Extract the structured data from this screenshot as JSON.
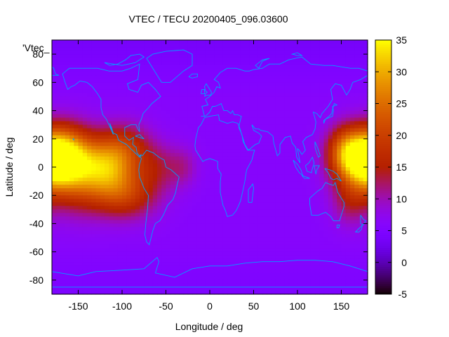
{
  "chart_data": {
    "type": "heatmap",
    "title": "VTEC / TECU 20200405_096.03600",
    "xlabel": "Longitude / deg",
    "ylabel": "Latitude / deg",
    "legend_key": "'Vtec_",
    "xlim": [
      -180,
      180
    ],
    "ylim": [
      -90,
      90
    ],
    "colorbar_range": [
      -5,
      35
    ],
    "x_ticks": [
      {
        "value": -150,
        "label": "-150"
      },
      {
        "value": -100,
        "label": "-100"
      },
      {
        "value": -50,
        "label": "-50"
      },
      {
        "value": 0,
        "label": "0"
      },
      {
        "value": 50,
        "label": "50"
      },
      {
        "value": 100,
        "label": "100"
      },
      {
        "value": 150,
        "label": "150"
      }
    ],
    "y_ticks": [
      {
        "value": 80,
        "label": "80"
      },
      {
        "value": 60,
        "label": "60"
      },
      {
        "value": 40,
        "label": "40"
      },
      {
        "value": 20,
        "label": "20"
      },
      {
        "value": 0,
        "label": "0"
      },
      {
        "value": -20,
        "label": "-20"
      },
      {
        "value": -40,
        "label": "-40"
      },
      {
        "value": -60,
        "label": "-60"
      },
      {
        "value": -80,
        "label": "-80"
      }
    ],
    "colorbar_ticks": [
      {
        "value": 35,
        "label": "35"
      },
      {
        "value": 30,
        "label": "30"
      },
      {
        "value": 25,
        "label": "25"
      },
      {
        "value": 20,
        "label": "20"
      },
      {
        "value": 15,
        "label": "15"
      },
      {
        "value": 10,
        "label": "10"
      },
      {
        "value": 5,
        "label": "5"
      },
      {
        "value": 0,
        "label": "0"
      },
      {
        "value": -5,
        "label": "-5"
      }
    ],
    "colormap": "gnuplot-rgbformulae-7-5-15",
    "background_level": 6,
    "field_components": [
      {
        "lon": -170,
        "lat": 10,
        "peak": 18,
        "sigma_lon": 22,
        "sigma_lat": 14
      },
      {
        "lon": -150,
        "lat": -5,
        "peak": 14,
        "sigma_lon": 25,
        "sigma_lat": 18
      },
      {
        "lon": -115,
        "lat": 0,
        "peak": 17,
        "sigma_lon": 22,
        "sigma_lat": 14
      },
      {
        "lon": -95,
        "lat": 15,
        "peak": 8,
        "sigma_lon": 20,
        "sigma_lat": 12
      },
      {
        "lon": -95,
        "lat": -20,
        "peak": 11,
        "sigma_lon": 25,
        "sigma_lat": 12
      },
      {
        "lon": -60,
        "lat": 0,
        "peak": 6,
        "sigma_lon": 18,
        "sigma_lat": 12
      },
      {
        "lon": -30,
        "lat": 0,
        "peak": 4,
        "sigma_lon": 12,
        "sigma_lat": 10
      },
      {
        "lon": 175,
        "lat": 3,
        "peak": 20,
        "sigma_lon": 22,
        "sigma_lat": 14
      },
      {
        "lon": 155,
        "lat": 12,
        "peak": 12,
        "sigma_lon": 15,
        "sigma_lat": 12
      },
      {
        "lon": 160,
        "lat": -25,
        "peak": 6,
        "sigma_lon": 15,
        "sigma_lat": 12
      }
    ],
    "grid": false,
    "legend_position": "top-left",
    "coastline_color": "#00a0ff"
  }
}
